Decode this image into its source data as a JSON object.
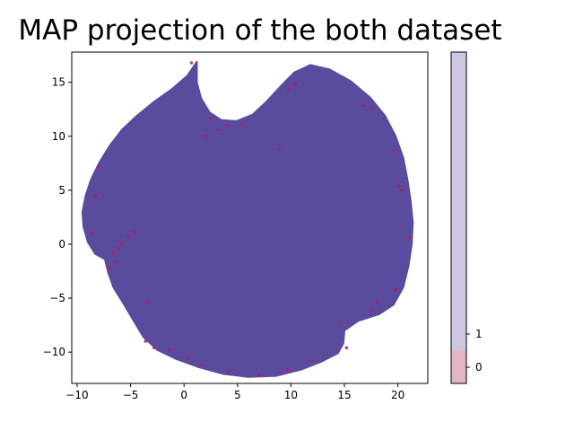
{
  "title": "MAP projection of the both dataset",
  "colors": {
    "cluster_fill": "#5b4b9e",
    "outlier_points": "#b0205a",
    "class_0": "#e2b6c8",
    "class_1": "#cdc7e1"
  },
  "chart_data": {
    "type": "scatter",
    "title": "MAP projection of the both dataset",
    "xlabel": "",
    "ylabel": "",
    "xlim": [
      -10.5,
      22.8
    ],
    "ylim": [
      -12.9,
      17.8
    ],
    "x_ticks": [
      -10,
      -5,
      0,
      5,
      10,
      15,
      20
    ],
    "y_ticks": [
      -10,
      -5,
      0,
      5,
      10,
      15
    ],
    "grid": false,
    "series": [
      {
        "label": "1",
        "color": "#5b4b9e",
        "shape": "dense filled cloud",
        "outline": [
          [
            1.2,
            16.9
          ],
          [
            1.2,
            15.0
          ],
          [
            1.6,
            13.5
          ],
          [
            2.4,
            12.2
          ],
          [
            3.5,
            11.5
          ],
          [
            4.9,
            11.4
          ],
          [
            6.4,
            12.0
          ],
          [
            7.7,
            13.2
          ],
          [
            9.0,
            14.6
          ],
          [
            10.3,
            15.9
          ],
          [
            11.8,
            16.6
          ],
          [
            13.6,
            16.2
          ],
          [
            15.6,
            15.1
          ],
          [
            17.4,
            13.6
          ],
          [
            18.8,
            11.9
          ],
          [
            19.8,
            10.0
          ],
          [
            20.5,
            8.0
          ],
          [
            20.9,
            6.0
          ],
          [
            21.2,
            4.0
          ],
          [
            21.4,
            2.0
          ],
          [
            21.3,
            0.0
          ],
          [
            21.0,
            -2.0
          ],
          [
            20.5,
            -4.0
          ],
          [
            19.6,
            -5.6
          ],
          [
            18.2,
            -6.5
          ],
          [
            16.3,
            -7.1
          ],
          [
            15.0,
            -8.0
          ],
          [
            14.9,
            -9.2
          ],
          [
            14.4,
            -10.1
          ],
          [
            12.8,
            -10.9
          ],
          [
            11.0,
            -11.6
          ],
          [
            8.6,
            -12.2
          ],
          [
            6.0,
            -12.3
          ],
          [
            3.6,
            -12.0
          ],
          [
            1.4,
            -11.4
          ],
          [
            -0.8,
            -10.6
          ],
          [
            -2.5,
            -9.8
          ],
          [
            -3.8,
            -8.6
          ],
          [
            -4.7,
            -7.1
          ],
          [
            -5.6,
            -5.6
          ],
          [
            -6.6,
            -4.0
          ],
          [
            -7.1,
            -2.6
          ],
          [
            -7.4,
            -1.4
          ],
          [
            -8.3,
            -0.9
          ],
          [
            -9.0,
            0.2
          ],
          [
            -9.4,
            1.6
          ],
          [
            -9.5,
            3.0
          ],
          [
            -9.2,
            4.5
          ],
          [
            -8.7,
            6.0
          ],
          [
            -7.9,
            7.6
          ],
          [
            -6.9,
            9.2
          ],
          [
            -5.8,
            10.6
          ],
          [
            -4.4,
            11.9
          ],
          [
            -2.8,
            13.2
          ],
          [
            -1.1,
            14.4
          ],
          [
            0.3,
            15.6
          ]
        ]
      },
      {
        "label": "0",
        "color": "#b0205a",
        "shape": "sparse points along edge",
        "points": [
          [
            -6.6,
            -0.8
          ],
          [
            -6.2,
            -0.4
          ],
          [
            -5.8,
            0.1
          ],
          [
            -5.2,
            0.7
          ],
          [
            -4.7,
            1.1
          ],
          [
            -7.0,
            -2.2
          ],
          [
            -6.4,
            -1.6
          ],
          [
            -8.3,
            4.5
          ],
          [
            -8.0,
            7.2
          ],
          [
            -8.5,
            1.0
          ],
          [
            -3.4,
            -5.4
          ],
          [
            -3.6,
            -9.0
          ],
          [
            -2.8,
            -9.6
          ],
          [
            0.4,
            -10.5
          ],
          [
            1.6,
            -11.2
          ],
          [
            2.5,
            11.7
          ],
          [
            3.2,
            10.6
          ],
          [
            2.0,
            10.0
          ],
          [
            4.1,
            11.0
          ],
          [
            5.4,
            11.2
          ],
          [
            9.0,
            8.8
          ],
          [
            9.8,
            14.4
          ],
          [
            10.4,
            14.9
          ],
          [
            16.7,
            12.8
          ],
          [
            17.6,
            12.5
          ],
          [
            19.6,
            8.7
          ],
          [
            20.1,
            5.4
          ],
          [
            20.4,
            5.0
          ],
          [
            21.1,
            0.6
          ],
          [
            19.8,
            -4.2
          ],
          [
            17.5,
            -6.1
          ],
          [
            18.1,
            -5.3
          ],
          [
            14.6,
            -7.5
          ],
          [
            15.2,
            -9.6
          ],
          [
            12.0,
            -10.8
          ],
          [
            9.7,
            -11.6
          ],
          [
            7.0,
            -12.1
          ],
          [
            4.2,
            -11.9
          ],
          [
            -1.4,
            -9.8
          ],
          [
            0.7,
            16.8
          ]
        ]
      }
    ],
    "colorbar": {
      "ticks": [
        0,
        1
      ],
      "tick_labels": [
        "0",
        "1"
      ],
      "colors": [
        "#e2b6c8",
        "#cdc7e1"
      ]
    }
  }
}
